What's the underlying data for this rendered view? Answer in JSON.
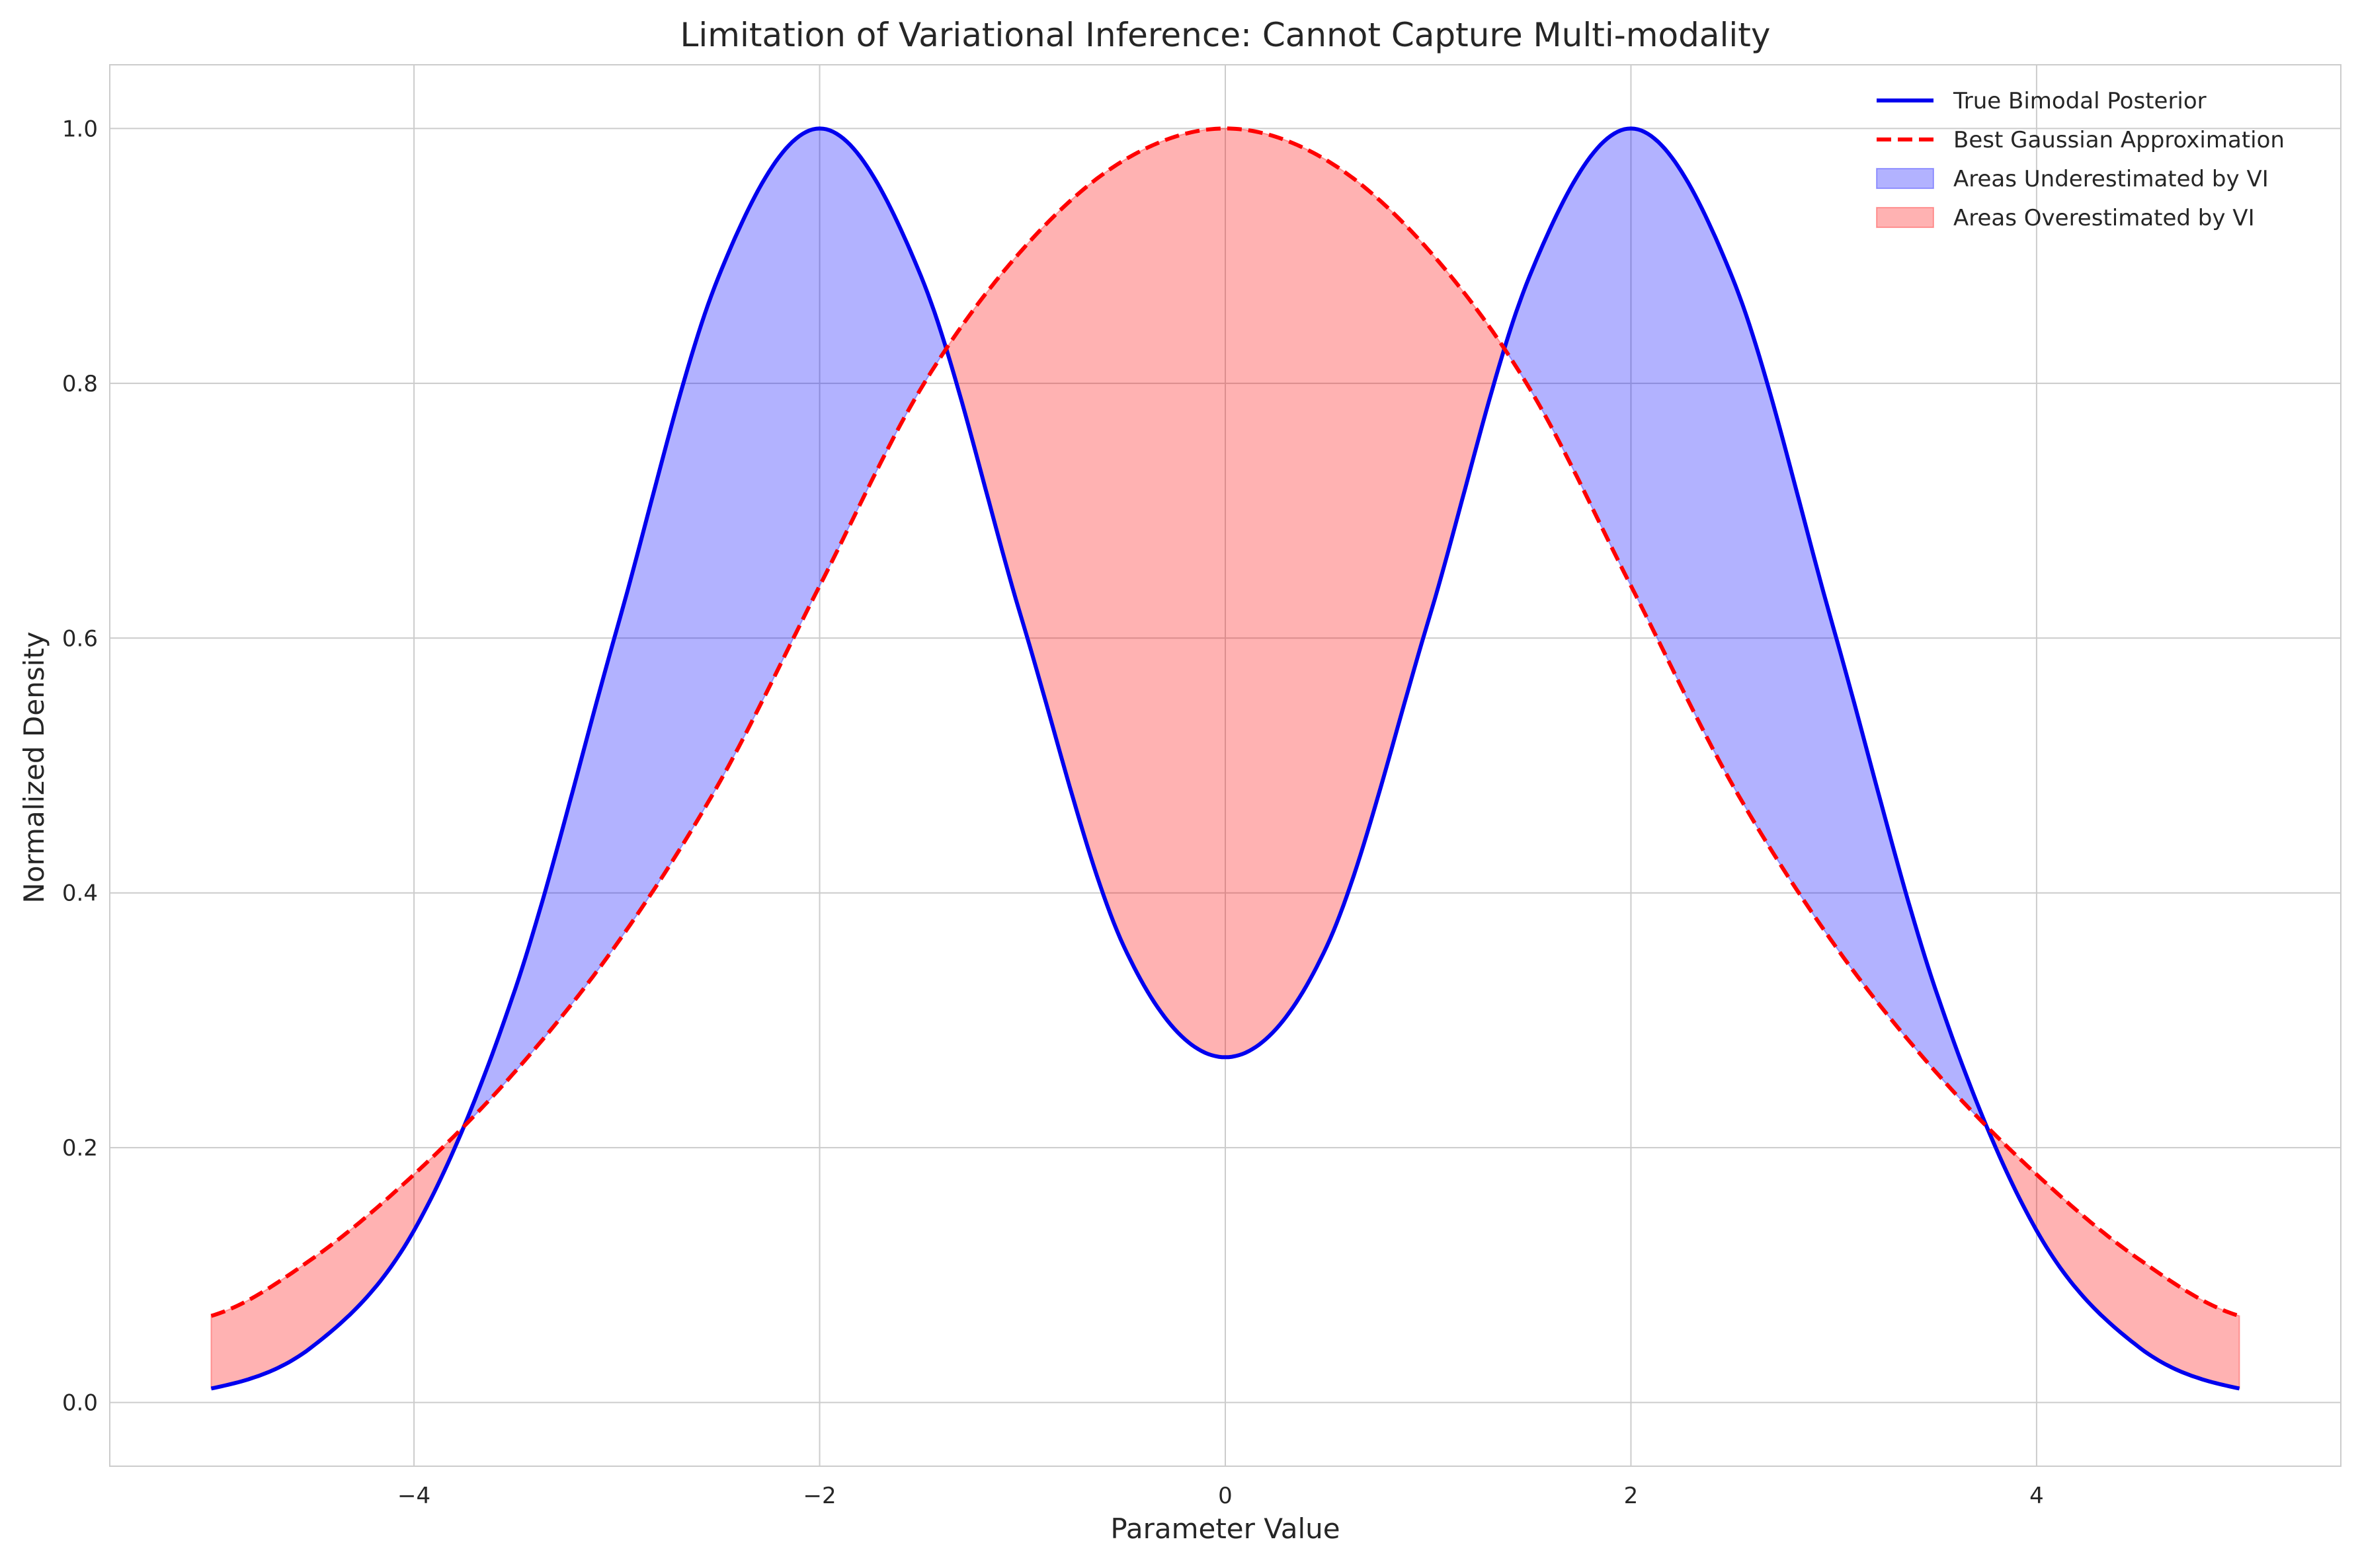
{
  "chart_data": {
    "type": "line",
    "title": "Limitation of Variational Inference: Cannot Capture Multi-modality",
    "xlabel": "Parameter Value",
    "ylabel": "Normalized Density",
    "xlim": [
      -5.5,
      5.5
    ],
    "ylim": [
      -0.05,
      1.05
    ],
    "x_ticks": [
      -4,
      -2,
      0,
      2,
      4
    ],
    "x_tick_labels": [
      "−4",
      "−2",
      "0",
      "2",
      "4"
    ],
    "y_ticks": [
      0.0,
      0.2,
      0.4,
      0.6,
      0.8,
      1.0
    ],
    "y_tick_labels": [
      "0.0",
      "0.2",
      "0.4",
      "0.6",
      "0.8",
      "1.0"
    ],
    "grid": true,
    "legend_position": "top-right",
    "x_range": [
      -5,
      5
    ],
    "series": [
      {
        "name": "True Bimodal Posterior",
        "kind": "line",
        "style": "solid",
        "color": "#0000ee",
        "x": [
          -5,
          -4.5,
          -4,
          -3.5,
          -3,
          -2.5,
          -2,
          -1.5,
          -1,
          -0.5,
          0,
          0.5,
          1,
          1.5,
          2,
          2.5,
          3,
          3.5,
          4,
          4.5,
          5
        ],
        "y": [
          0.011,
          0.044,
          0.135,
          0.325,
          0.607,
          0.883,
          1.0,
          0.884,
          0.613,
          0.358,
          0.271,
          0.358,
          0.613,
          0.884,
          1.0,
          0.883,
          0.607,
          0.325,
          0.135,
          0.044,
          0.011
        ]
      },
      {
        "name": "Best Gaussian Approximation",
        "kind": "line",
        "style": "dashed",
        "color": "#ff0000",
        "x": [
          -5,
          -4.5,
          -4,
          -3.5,
          -3,
          -2.5,
          -2,
          -1.5,
          -1,
          -0.5,
          0,
          0.5,
          1,
          1.5,
          2,
          2.5,
          3,
          3.5,
          4,
          4.5,
          5
        ],
        "y": [
          0.068,
          0.113,
          0.179,
          0.26,
          0.36,
          0.485,
          0.641,
          0.796,
          0.905,
          0.975,
          1.0,
          0.975,
          0.905,
          0.796,
          0.641,
          0.485,
          0.36,
          0.26,
          0.179,
          0.113,
          0.068
        ]
      },
      {
        "name": "Areas Underestimated by VI",
        "kind": "fill",
        "color": "#0000ff"
      },
      {
        "name": "Areas Overestimated by VI",
        "kind": "fill",
        "color": "#ff0000"
      }
    ]
  },
  "colors": {
    "grid": "#cccccc",
    "axes_edge": "#cccccc",
    "text": "#262626"
  }
}
